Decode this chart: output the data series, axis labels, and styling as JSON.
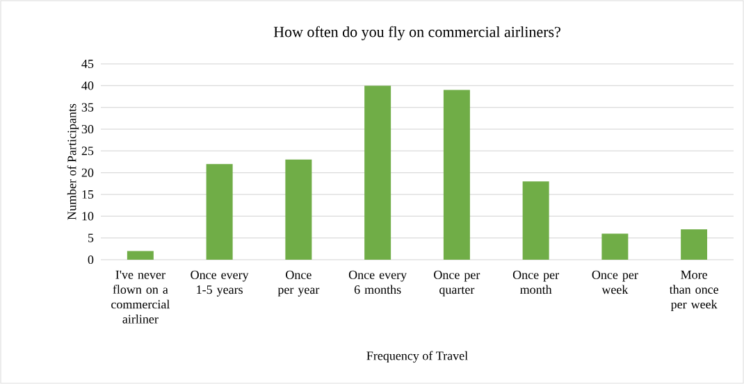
{
  "chart_data": {
    "type": "bar",
    "title": "How often do you fly on commercial airliners?",
    "xlabel": "Frequency of Travel",
    "ylabel": "Number of Participants",
    "categories": [
      "I've never flown on a commercial airliner",
      "Once every 1-5 years",
      "Once per year",
      "Once every 6 months",
      "Once per quarter",
      "Once per month",
      "Once per week",
      "More than once per week"
    ],
    "values": [
      2,
      22,
      23,
      40,
      39,
      18,
      6,
      7
    ],
    "color": "#70ad47",
    "ylim": [
      0,
      45
    ],
    "yticks": [
      0,
      5,
      10,
      15,
      20,
      25,
      30,
      35,
      40,
      45
    ],
    "grid": "y"
  }
}
